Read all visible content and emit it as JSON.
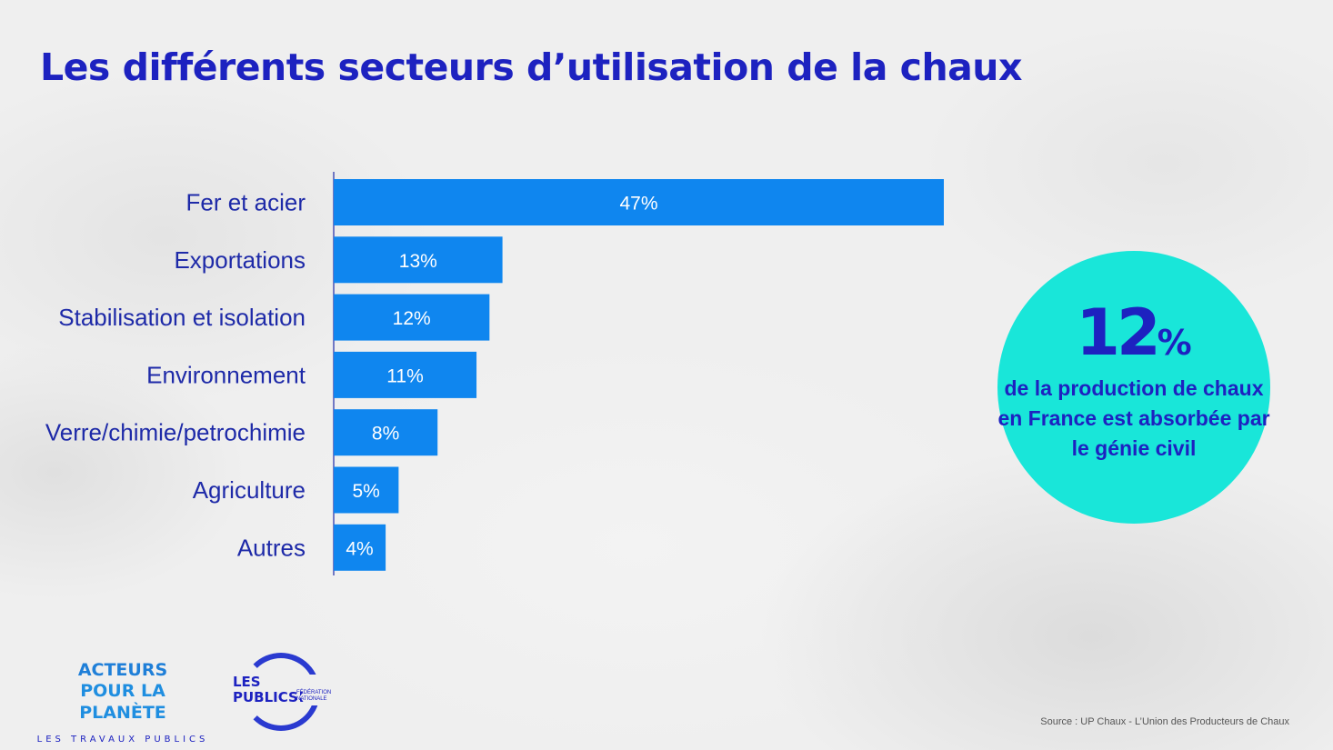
{
  "title": "Les différents secteurs d’utilisation de la chaux",
  "chart_data": {
    "type": "bar",
    "orientation": "horizontal",
    "categories": [
      "Fer et acier",
      "Exportations",
      "Stabilisation et isolation",
      "Environnement",
      "Verre/chimie/petrochimie",
      "Agriculture",
      "Autres"
    ],
    "values": [
      47,
      13,
      12,
      11,
      8,
      5,
      4
    ],
    "value_labels": [
      "47%",
      "13%",
      "12%",
      "11%",
      "8%",
      "5%",
      "4%"
    ],
    "unit": "%",
    "xlim": [
      0,
      47
    ],
    "grid": false,
    "bar_color": "#0f86ef"
  },
  "highlight": {
    "number": "12",
    "unit": "%",
    "text": "de la production de chaux en France est absorbée par le génie civil",
    "color": "#19e6d9"
  },
  "logos": {
    "acteurs_line1": "ACTEURS",
    "acteurs_line2": "POUR LA PLANÈTE",
    "acteurs_line3": "LES TRAVAUX PUBLICS",
    "tp_line1": "LES TRAVAUX",
    "tp_line2": "PUBLICS",
    "tp_line3": "FÉDÉRATION NATIONALE"
  },
  "source": "Source : UP Chaux - L’Union des Producteurs de Chaux",
  "colors": {
    "title": "#1d22c0",
    "accent": "#0f86ef"
  }
}
